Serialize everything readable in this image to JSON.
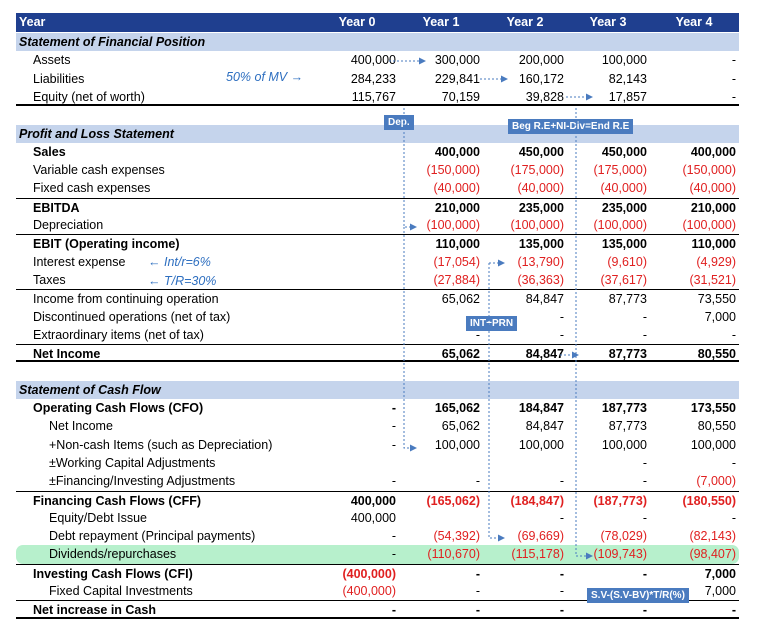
{
  "header": {
    "label": "Year",
    "years": [
      "Year 0",
      "Year 1",
      "Year 2",
      "Year 3",
      "Year 4"
    ]
  },
  "rows": [
    {
      "type": "section",
      "label": "Statement of Financial Position"
    },
    {
      "label": "Assets",
      "indent": 1,
      "values": [
        "400,000",
        "300,000",
        "200,000",
        "100,000",
        "-"
      ]
    },
    {
      "label": "Liabilities",
      "indent": 1,
      "values": [
        "284,233",
        "229,841",
        "160,172",
        "82,143",
        "-"
      ]
    },
    {
      "label": "Equity (net of worth)",
      "indent": 1,
      "values": [
        "115,767",
        "70,159",
        "39,828",
        "17,857",
        "-"
      ],
      "bottom": true
    },
    {
      "type": "blank"
    },
    {
      "type": "section",
      "label": "Profit and Loss Statement"
    },
    {
      "label": "Sales",
      "indent": 1,
      "bold": true,
      "values": [
        "",
        "400,000",
        "450,000",
        "450,000",
        "400,000"
      ]
    },
    {
      "label": "Variable cash expenses",
      "indent": 1,
      "values": [
        "",
        "(150,000)",
        "(175,000)",
        "(175,000)",
        "(150,000)"
      ]
    },
    {
      "label": "Fixed cash expenses",
      "indent": 1,
      "values": [
        "",
        "(40,000)",
        "(40,000)",
        "(40,000)",
        "(40,000)"
      ]
    },
    {
      "label": "EBITDA",
      "indent": 1,
      "bold": true,
      "top": true,
      "values": [
        "",
        "210,000",
        "235,000",
        "235,000",
        "210,000"
      ]
    },
    {
      "label": "Depreciation",
      "indent": 1,
      "values": [
        "",
        "(100,000)",
        "(100,000)",
        "(100,000)",
        "(100,000)"
      ]
    },
    {
      "label": "EBIT (Operating income)",
      "indent": 1,
      "bold": true,
      "top": true,
      "values": [
        "",
        "110,000",
        "135,000",
        "135,000",
        "110,000"
      ]
    },
    {
      "label": "Interest expense",
      "indent": 1,
      "values": [
        "",
        "(17,054)",
        "(13,790)",
        "(9,610)",
        "(4,929)"
      ]
    },
    {
      "label": "Taxes",
      "indent": 1,
      "values": [
        "",
        "(27,884)",
        "(36,363)",
        "(37,617)",
        "(31,521)"
      ]
    },
    {
      "label": "Income from continuing operation",
      "indent": 1,
      "top": true,
      "values": [
        "",
        "65,062",
        "84,847",
        "87,773",
        "73,550"
      ]
    },
    {
      "label": "Discontinued operations (net of tax)",
      "indent": 1,
      "values": [
        "",
        "-",
        "-",
        "-",
        "7,000"
      ]
    },
    {
      "label": "Extraordinary items (net of tax)",
      "indent": 1,
      "values": [
        "",
        "-",
        "-",
        "-",
        "-"
      ]
    },
    {
      "label": "Net Income",
      "indent": 1,
      "bold": true,
      "top": true,
      "bottom": true,
      "values": [
        "",
        "65,062",
        "84,847",
        "87,773",
        "80,550"
      ]
    },
    {
      "type": "blank"
    },
    {
      "type": "section",
      "label": "Statement of Cash Flow"
    },
    {
      "label": "Operating Cash Flows (CFO)",
      "indent": 1,
      "bold": true,
      "values": [
        "-",
        "165,062",
        "184,847",
        "187,773",
        "173,550"
      ]
    },
    {
      "label": "Net Income",
      "indent": 2,
      "values": [
        "-",
        "65,062",
        "84,847",
        "87,773",
        "80,550"
      ]
    },
    {
      "label": "+Non-cash Items (such as Depreciation)",
      "indent": 2,
      "values": [
        "-",
        "100,000",
        "100,000",
        "100,000",
        "100,000"
      ]
    },
    {
      "label": "±Working Capital Adjustments",
      "indent": 2,
      "values": [
        "",
        "",
        "",
        "-",
        "-"
      ]
    },
    {
      "label": "±Financing/Investing Adjustments",
      "indent": 2,
      "values": [
        "-",
        "-",
        "-",
        "-",
        "(7,000)"
      ]
    },
    {
      "label": "Financing Cash Flows (CFF)",
      "indent": 1,
      "bold": true,
      "top": true,
      "values": [
        "400,000",
        "(165,062)",
        "(184,847)",
        "(187,773)",
        "(180,550)"
      ]
    },
    {
      "label": "Equity/Debt Issue",
      "indent": 2,
      "values": [
        "400,000",
        "",
        "-",
        "-",
        "-"
      ]
    },
    {
      "label": "Debt repayment (Principal payments)",
      "indent": 2,
      "values": [
        "-",
        "(54,392)",
        "(69,669)",
        "(78,029)",
        "(82,143)"
      ]
    },
    {
      "label": "Dividends/repurchases",
      "indent": 2,
      "highlight": true,
      "values": [
        "-",
        "(110,670)",
        "(115,178)",
        "(109,743)",
        "(98,407)"
      ]
    },
    {
      "label": "Investing Cash Flows (CFI)",
      "indent": 1,
      "bold": true,
      "top": true,
      "values": [
        "(400,000)",
        "-",
        "-",
        "-",
        "7,000"
      ]
    },
    {
      "label": "Fixed Capital Investments",
      "indent": 2,
      "values": [
        "(400,000)",
        "-",
        "-",
        "-",
        "7,000"
      ]
    },
    {
      "label": "Net increase in Cash",
      "indent": 1,
      "bold": true,
      "top": true,
      "bottom": true,
      "values": [
        "-",
        "-",
        "-",
        "-",
        "-"
      ]
    }
  ],
  "notes": {
    "mv": "50% of MV →",
    "int": "← Int/r=6%",
    "tr": "← T/R=30%"
  },
  "tags": {
    "dep": "Dep.",
    "re": "Beg R.E+NI-Div=End R.E",
    "intprn": "INT+PRN",
    "sv": "S.V-(S.V-BV)*T/R(%)"
  },
  "colors": {
    "header": "#1f3f8f",
    "section": "#c5d4ec",
    "negative": "#e02020",
    "arrow": "#4a7bbf",
    "highlight": "#b7f0cc"
  }
}
